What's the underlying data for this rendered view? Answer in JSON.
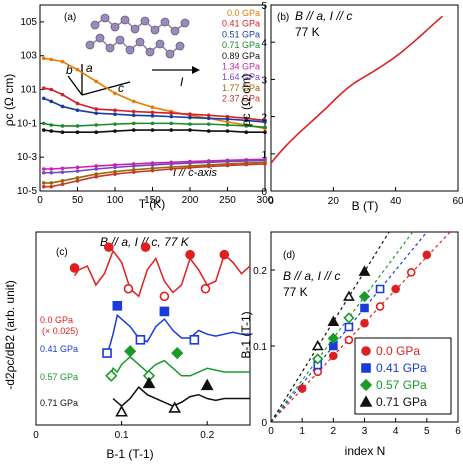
{
  "chart_data": [
    {
      "type": "line",
      "panel_label": "(a)",
      "xlabel": "T (K)",
      "ylabel": "ρc (Ω cm)",
      "xlim": [
        0,
        300
      ],
      "ylim_log10": [
        -5,
        6
      ],
      "x_ticks": [
        0,
        50,
        100,
        150,
        200,
        250,
        300
      ],
      "y_ticks": [
        {
          "label": "10-5",
          "exp": -5
        },
        {
          "label": "10-3",
          "exp": -3
        },
        {
          "label": "10-1",
          "exp": -1
        },
        {
          "label": "101",
          "exp": 1
        },
        {
          "label": "103",
          "exp": 3
        },
        {
          "label": "105",
          "exp": 5
        }
      ],
      "annotation": "I // c-axis",
      "inset_labels": {
        "b": "b",
        "a": "a",
        "c": "c",
        "I": "I"
      },
      "series": [
        {
          "name": "0.0 GPa",
          "color": "#e87a00",
          "x": [
            5,
            15,
            30,
            50,
            75,
            100,
            125,
            150,
            175,
            200,
            225,
            250,
            275,
            300
          ],
          "y": [
            700,
            600,
            450,
            150,
            30,
            6,
            2,
            0.9,
            0.5,
            0.3,
            0.2,
            0.12,
            0.08,
            0.05
          ]
        },
        {
          "name": "0.41 GPa",
          "color": "#d0202a",
          "x": [
            5,
            15,
            30,
            50,
            75,
            100,
            125,
            150,
            175,
            200,
            225,
            250,
            275,
            300
          ],
          "y": [
            12,
            10,
            5,
            1.5,
            0.7,
            0.6,
            0.5,
            0.45,
            0.4,
            0.35,
            0.3,
            0.25,
            0.2,
            0.15
          ]
        },
        {
          "name": "0.51 GPa",
          "color": "#1a3aa0",
          "x": [
            5,
            15,
            30,
            50,
            75,
            100,
            125,
            150,
            175,
            200,
            225,
            250,
            275,
            300
          ],
          "y": [
            3,
            2,
            1,
            0.6,
            0.4,
            0.35,
            0.3,
            0.28,
            0.25,
            0.22,
            0.2,
            0.18,
            0.15,
            0.12
          ]
        },
        {
          "name": "0.71 GPa",
          "color": "#1a8a2a",
          "x": [
            5,
            15,
            30,
            50,
            75,
            100,
            125,
            150,
            175,
            200,
            225,
            250,
            275,
            300
          ],
          "y": [
            0.1,
            0.08,
            0.07,
            0.07,
            0.08,
            0.09,
            0.1,
            0.1,
            0.1,
            0.09,
            0.09,
            0.08,
            0.07,
            0.06
          ]
        },
        {
          "name": "0.89 GPa",
          "color": "#111111",
          "x": [
            5,
            15,
            30,
            50,
            75,
            100,
            125,
            150,
            175,
            200,
            225,
            250,
            275,
            300
          ],
          "y": [
            0.04,
            0.035,
            0.03,
            0.03,
            0.03,
            0.035,
            0.04,
            0.04,
            0.04,
            0.04,
            0.035,
            0.035,
            0.03,
            0.03
          ]
        },
        {
          "name": "1.34 GPa",
          "color": "#cc22aa",
          "x": [
            5,
            15,
            30,
            50,
            75,
            100,
            125,
            150,
            175,
            200,
            225,
            250,
            275,
            300
          ],
          "y": [
            0.0002,
            0.0002,
            0.00022,
            0.00025,
            0.0003,
            0.00035,
            0.0004,
            0.00045,
            0.0005,
            0.00055,
            0.0006,
            0.00065,
            0.0007,
            0.00075
          ]
        },
        {
          "name": "1.64 GPa",
          "color": "#7744cc",
          "x": [
            5,
            15,
            30,
            50,
            75,
            100,
            125,
            150,
            175,
            200,
            225,
            250,
            275,
            300
          ],
          "y": [
            0.00012,
            0.00012,
            0.00013,
            0.00015,
            0.0002,
            0.00025,
            0.0003,
            0.00035,
            0.0004,
            0.00045,
            0.0005,
            0.00055,
            0.0006,
            0.00065
          ]
        },
        {
          "name": "1.77 GPa",
          "color": "#9a6a00",
          "x": [
            5,
            15,
            30,
            50,
            75,
            100,
            125,
            150,
            175,
            200,
            225,
            250,
            275,
            300
          ],
          "y": [
            3e-05,
            3e-05,
            4e-05,
            6e-05,
            0.0001,
            0.00014,
            0.00018,
            0.00022,
            0.00026,
            0.0003,
            0.00035,
            0.0004,
            0.00045,
            0.0005
          ]
        },
        {
          "name": "2.37 GPa",
          "color": "#c43a2a",
          "x": [
            5,
            15,
            30,
            50,
            75,
            100,
            125,
            150,
            175,
            200,
            225,
            250,
            275,
            300
          ],
          "y": [
            1.8e-05,
            1.8e-05,
            2.5e-05,
            4e-05,
            7e-05,
            0.0001,
            0.00013,
            0.00016,
            0.0002,
            0.00024,
            0.00028,
            0.00032,
            0.00036,
            0.0004
          ]
        }
      ]
    },
    {
      "type": "line",
      "panel_label": "(b)",
      "title": "B // a, I // c",
      "subtitle": "77 K",
      "xlabel": "B (T)",
      "ylabel": "ρc (Ω cm)",
      "xlim": [
        0,
        60
      ],
      "ylim": [
        0,
        5
      ],
      "x_ticks": [
        0,
        20,
        40,
        60
      ],
      "y_ticks": [
        0,
        1,
        2,
        3,
        4,
        5
      ],
      "series": [
        {
          "name": "",
          "color": "#e02020",
          "x": [
            0,
            3,
            6,
            9,
            12,
            15,
            18,
            21,
            24,
            27,
            30,
            33,
            36,
            39,
            42,
            45,
            48,
            51,
            55
          ],
          "y": [
            0.75,
            1.05,
            1.32,
            1.56,
            1.79,
            2.02,
            2.25,
            2.5,
            2.73,
            2.92,
            3.07,
            3.22,
            3.38,
            3.55,
            3.74,
            3.95,
            4.17,
            4.4,
            4.7
          ]
        }
      ]
    },
    {
      "type": "line",
      "panel_label": "(c)",
      "title": "B // a, I // c, 77 K",
      "xlabel": "B-1 (T-1)",
      "ylabel": "-d2ρc/dB2 (arb. unit)",
      "xlim": [
        0,
        0.25
      ],
      "x_ticks": [
        0.0,
        0.1,
        0.2
      ],
      "series": [
        {
          "name": "0.0 GPa",
          "sub": "(× 0.025)",
          "color": "#e02020",
          "x": [
            0.045,
            0.05,
            0.06,
            0.07,
            0.08,
            0.09,
            0.1,
            0.11,
            0.12,
            0.13,
            0.14,
            0.15,
            0.16,
            0.17,
            0.18,
            0.19,
            0.2,
            0.21,
            0.22,
            0.23,
            0.24,
            0.25
          ],
          "y": [
            4.55,
            4.7,
            4.8,
            4.3,
            4.6,
            5.2,
            4.9,
            4.2,
            4.0,
            4.7,
            5.0,
            4.4,
            4.1,
            4.3,
            5.0,
            4.7,
            4.3,
            4.4,
            5.1,
            4.9,
            4.6,
            4.8
          ],
          "max_markers": [
            [
              0.045,
              4.75
            ],
            [
              0.085,
              5.3
            ],
            [
              0.128,
              5.3
            ],
            [
              0.18,
              5.1
            ],
            [
              0.22,
              5.1
            ]
          ],
          "min_markers": [
            [
              0.108,
              4.2
            ],
            [
              0.15,
              4.0
            ],
            [
              0.198,
              4.2
            ]
          ]
        },
        {
          "name": "0.41 GPa",
          "color": "#1a3adc",
          "x": [
            0.08,
            0.085,
            0.09,
            0.095,
            0.1,
            0.11,
            0.12,
            0.13,
            0.14,
            0.15,
            0.16,
            0.17,
            0.18,
            0.19,
            0.2,
            0.21,
            0.22,
            0.23,
            0.24,
            0.25
          ],
          "y": [
            2.4,
            2.6,
            3.0,
            3.5,
            3.4,
            3.2,
            2.9,
            2.8,
            3.2,
            3.4,
            3.1,
            2.9,
            2.9,
            3.1,
            3.0,
            2.95,
            3.0,
            3.05,
            3.0,
            3.0
          ],
          "max_markers": [
            [
              0.095,
              3.75
            ],
            [
              0.15,
              3.6
            ]
          ],
          "min_markers": [
            [
              0.083,
              2.5
            ],
            [
              0.122,
              2.85
            ],
            [
              0.185,
              2.85
            ]
          ]
        },
        {
          "name": "0.57 GPa",
          "color": "#1a9a2a",
          "x": [
            0.085,
            0.09,
            0.095,
            0.1,
            0.11,
            0.12,
            0.13,
            0.14,
            0.15,
            0.16,
            0.17,
            0.18,
            0.19,
            0.2,
            0.21,
            0.22,
            0.23,
            0.24,
            0.25
          ],
          "y": [
            1.8,
            2.1,
            2.0,
            2.2,
            2.4,
            2.2,
            2.0,
            2.2,
            2.3,
            2.1,
            1.9,
            1.9,
            2.0,
            2.1,
            2.05,
            2.0,
            2.0,
            2.0,
            2.0
          ],
          "max_markers": [
            [
              0.11,
              2.55
            ],
            [
              0.165,
              2.5
            ]
          ],
          "min_markers": [
            [
              0.088,
              1.9
            ],
            [
              0.132,
              1.9
            ]
          ]
        },
        {
          "name": "0.71 GPa",
          "color": "#111111",
          "x": [
            0.09,
            0.095,
            0.1,
            0.11,
            0.12,
            0.13,
            0.14,
            0.15,
            0.16,
            0.17,
            0.18,
            0.19,
            0.2,
            0.21,
            0.22,
            0.23,
            0.24,
            0.25
          ],
          "y": [
            1.3,
            1.2,
            1.1,
            1.3,
            1.6,
            1.4,
            1.3,
            1.2,
            1.1,
            1.2,
            1.35,
            1.4,
            1.3,
            1.25,
            1.3,
            1.3,
            1.3,
            1.3
          ],
          "max_markers": [
            [
              0.132,
              1.7
            ],
            [
              0.2,
              1.65
            ]
          ],
          "min_markers": [
            [
              0.1,
              0.95
            ],
            [
              0.162,
              1.05
            ]
          ]
        }
      ]
    },
    {
      "type": "scatter",
      "panel_label": "(d)",
      "title": "B // a, I // c",
      "subtitle": "77 K",
      "xlabel": "index N",
      "ylabel": "B-1 (T-1)",
      "xlim": [
        0,
        6
      ],
      "ylim": [
        0,
        0.25
      ],
      "x_ticks": [
        0,
        1,
        2,
        3,
        4,
        5,
        6
      ],
      "y_ticks": [
        0,
        0.1,
        0.2
      ],
      "series": [
        {
          "name": "0.0 GPa",
          "color": "#e02020",
          "marker": "circle",
          "slope": 0.0435,
          "filled": [
            [
              1,
              0.044
            ],
            [
              2,
              0.087
            ],
            [
              3,
              0.13
            ],
            [
              4,
              0.175
            ],
            [
              5,
              0.22
            ]
          ],
          "open": [
            [
              1.5,
              0.066
            ],
            [
              2.5,
              0.108
            ],
            [
              3.5,
              0.152
            ],
            [
              4.5,
              0.197
            ]
          ]
        },
        {
          "name": "0.41 GPa",
          "color": "#1a3adc",
          "marker": "square",
          "slope": 0.05,
          "filled": [
            [
              2,
              0.1
            ],
            [
              3,
              0.15
            ]
          ],
          "open": [
            [
              1.5,
              0.075
            ],
            [
              2.5,
              0.125
            ],
            [
              3.5,
              0.175
            ]
          ]
        },
        {
          "name": "0.57 GPa",
          "color": "#1a9a2a",
          "marker": "diamond",
          "slope": 0.055,
          "filled": [
            [
              2,
              0.11
            ],
            [
              3,
              0.165
            ]
          ],
          "open": [
            [
              1.5,
              0.083
            ],
            [
              2.5,
              0.137
            ]
          ]
        },
        {
          "name": "0.71 GPa",
          "color": "#111111",
          "marker": "triangle",
          "slope": 0.066,
          "filled": [
            [
              2,
              0.132
            ],
            [
              3,
              0.198
            ]
          ],
          "open": [
            [
              1.5,
              0.1
            ],
            [
              2.5,
              0.165
            ]
          ]
        }
      ]
    }
  ]
}
